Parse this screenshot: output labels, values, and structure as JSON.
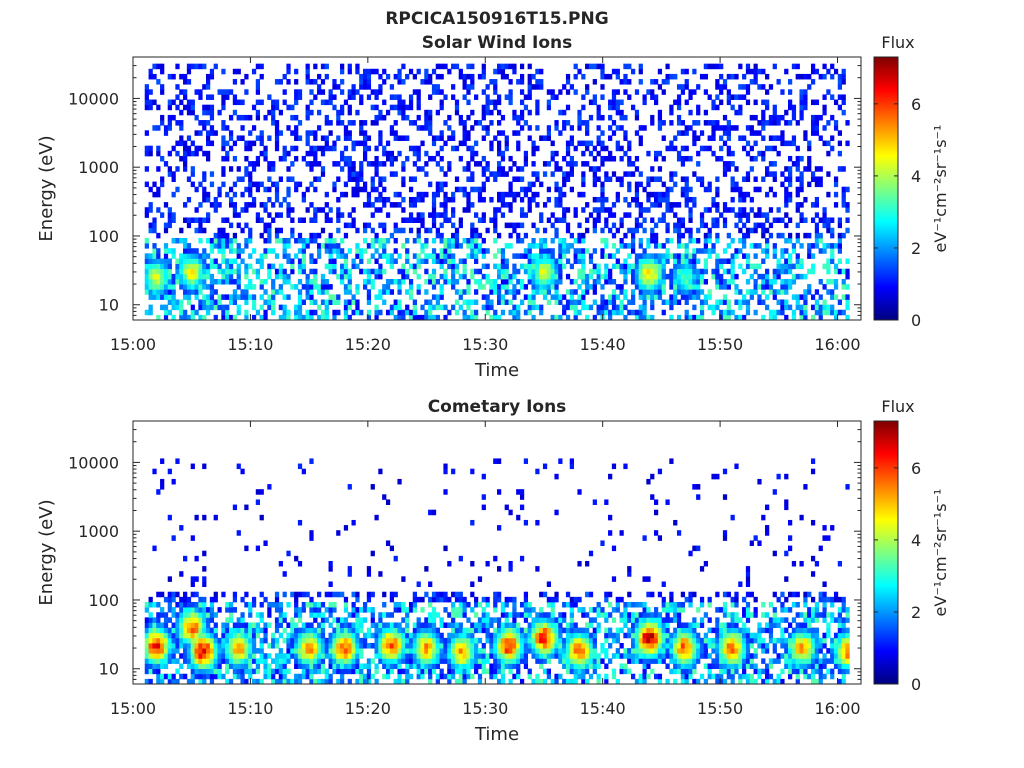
{
  "figure": {
    "title": "RPCICA150916T15.PNG"
  },
  "colormap": [
    "#00007f",
    "#0000ff",
    "#007fff",
    "#00ffff",
    "#7fff7f",
    "#ffff00",
    "#ff7f00",
    "#ff0000",
    "#7f0000"
  ],
  "chart_data": [
    {
      "type": "heatmap",
      "title": "Solar Wind Ions",
      "xlabel": "Time",
      "ylabel": "Energy (eV)",
      "x_range": [
        "15:00",
        "16:02"
      ],
      "x_ticks": [
        "15:00",
        "15:10",
        "15:20",
        "15:30",
        "15:40",
        "15:50",
        "16:00"
      ],
      "y_scale": "log",
      "y_range": [
        6,
        40000
      ],
      "y_ticks": [
        "10",
        "100",
        "1000",
        "10000"
      ],
      "colorbar": {
        "title": "Flux",
        "label": "eV⁻¹cm⁻²sr⁻¹s⁻¹",
        "range": [
          0,
          7.3
        ],
        "ticks": [
          "0",
          "2",
          "4",
          "6"
        ]
      },
      "features": {
        "sparse_flux_high_energy": {
          "energy_range_eV": [
            100,
            30000
          ],
          "typical_flux": 1
        },
        "low_energy_band": {
          "energy_range_eV": [
            6,
            100
          ],
          "typical_flux": 2
        },
        "enhancements": [
          {
            "time": "15:02",
            "energy_eV": 25,
            "flux": 4.5
          },
          {
            "time": "15:05",
            "energy_eV": 30,
            "flux": 4.8
          },
          {
            "time": "15:35",
            "energy_eV": 30,
            "flux": 4.5
          },
          {
            "time": "15:44",
            "energy_eV": 28,
            "flux": 5.0
          },
          {
            "time": "15:47",
            "energy_eV": 25,
            "flux": 3.5
          }
        ]
      }
    },
    {
      "type": "heatmap",
      "title": "Cometary Ions",
      "xlabel": "Time",
      "ylabel": "Energy (eV)",
      "x_range": [
        "15:00",
        "16:02"
      ],
      "x_ticks": [
        "15:00",
        "15:10",
        "15:20",
        "15:30",
        "15:40",
        "15:50",
        "16:00"
      ],
      "y_scale": "log",
      "y_range": [
        6,
        40000
      ],
      "y_ticks": [
        "10",
        "100",
        "1000",
        "10000"
      ],
      "colorbar": {
        "title": "Flux",
        "label": "eV⁻¹cm⁻²sr⁻¹s⁻¹",
        "range": [
          0,
          7.3
        ],
        "ticks": [
          "0",
          "2",
          "4",
          "6"
        ]
      },
      "features": {
        "sparse_flux_high_energy": {
          "energy_range_eV": [
            150,
            11000
          ],
          "typical_flux": 0.8
        },
        "low_energy_band": {
          "energy_range_eV": [
            6,
            100
          ],
          "typical_flux": 2
        },
        "bursts": [
          {
            "time": "15:02",
            "energy_eV": 22,
            "flux": 6.5
          },
          {
            "time": "15:05",
            "energy_eV": 40,
            "flux": 6.0
          },
          {
            "time": "15:06",
            "energy_eV": 18,
            "flux": 6.8
          },
          {
            "time": "15:09",
            "energy_eV": 20,
            "flux": 5.5
          },
          {
            "time": "15:15",
            "energy_eV": 20,
            "flux": 5.5
          },
          {
            "time": "15:18",
            "energy_eV": 20,
            "flux": 6.0
          },
          {
            "time": "15:22",
            "energy_eV": 22,
            "flux": 6.0
          },
          {
            "time": "15:25",
            "energy_eV": 20,
            "flux": 5.5
          },
          {
            "time": "15:28",
            "energy_eV": 18,
            "flux": 5.5
          },
          {
            "time": "15:32",
            "energy_eV": 22,
            "flux": 6.5
          },
          {
            "time": "15:35",
            "energy_eV": 28,
            "flux": 6.5
          },
          {
            "time": "15:38",
            "energy_eV": 18,
            "flux": 6.0
          },
          {
            "time": "15:44",
            "energy_eV": 28,
            "flux": 7.2
          },
          {
            "time": "15:47",
            "energy_eV": 20,
            "flux": 6.0
          },
          {
            "time": "15:51",
            "energy_eV": 20,
            "flux": 6.0
          },
          {
            "time": "15:57",
            "energy_eV": 20,
            "flux": 5.5
          },
          {
            "time": "16:01",
            "energy_eV": 18,
            "flux": 6.0
          }
        ]
      }
    }
  ]
}
